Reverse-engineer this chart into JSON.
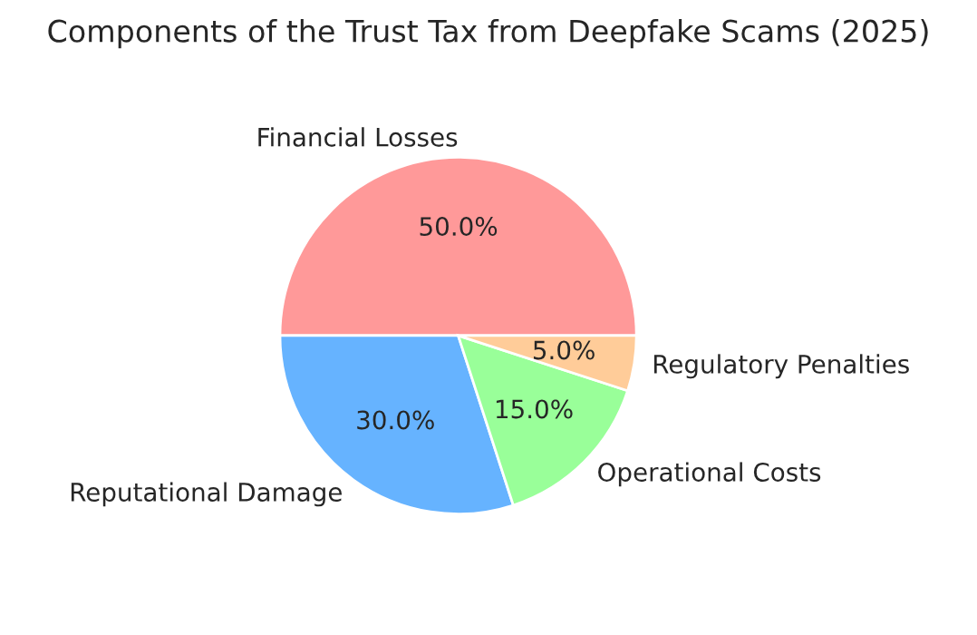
{
  "chart_data": {
    "type": "pie",
    "title": "Components of the Trust Tax from Deepfake Scams (2025)",
    "categories": [
      "Financial Losses",
      "Reputational Damage",
      "Operational Costs",
      "Regulatory Penalties"
    ],
    "values": [
      50,
      30,
      15,
      5
    ],
    "colors": [
      "#ff9999",
      "#66b3ff",
      "#99ff99",
      "#ffcc99"
    ],
    "value_labels": [
      "50.0%",
      "30.0%",
      "15.0%",
      "5.0%"
    ]
  }
}
